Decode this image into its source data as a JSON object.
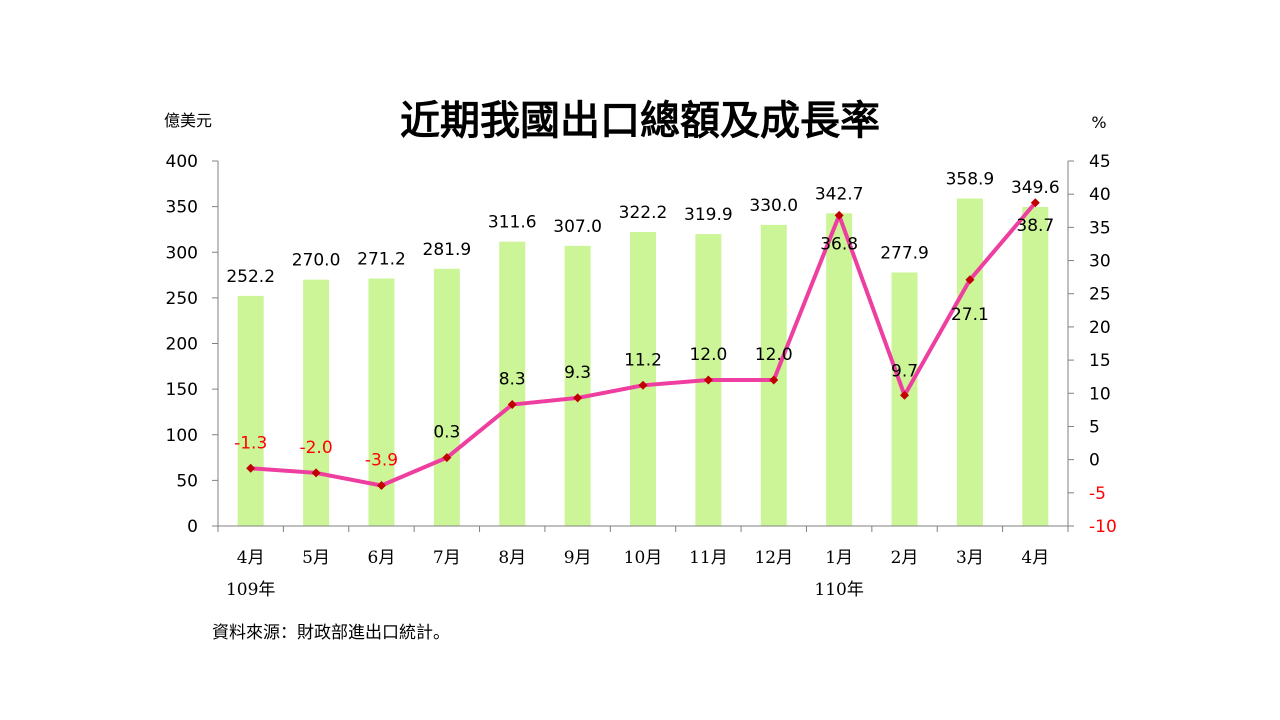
{
  "chart_data": {
    "type": "bar+line",
    "title": "近期我國出口總額及成長率",
    "y_left_unit": "億美元",
    "y_right_unit": "%",
    "categories": [
      "4月",
      "5月",
      "6月",
      "7月",
      "8月",
      "9月",
      "10月",
      "11月",
      "12月",
      "1月",
      "2月",
      "3月",
      "4月"
    ],
    "year_labels": [
      {
        "text": "109年",
        "index": 0
      },
      {
        "text": "110年",
        "index": 9
      }
    ],
    "series": [
      {
        "type": "bar",
        "axis": "left",
        "color": "#ccf598",
        "values": [
          252.2,
          270.0,
          271.2,
          281.9,
          311.6,
          307.0,
          322.2,
          319.9,
          330.0,
          342.7,
          277.9,
          358.9,
          349.6
        ],
        "labels": [
          "252.2",
          "270.0",
          "271.2",
          "281.9",
          "311.6",
          "307.0",
          "322.2",
          "319.9",
          "330.0",
          "342.7",
          "277.9",
          "358.9",
          "349.6"
        ]
      },
      {
        "type": "line",
        "axis": "right",
        "color": "#ee3fa0",
        "marker_color": "#c00000",
        "values": [
          -1.3,
          -2.0,
          -3.9,
          0.3,
          8.3,
          9.3,
          11.2,
          12.0,
          12.0,
          36.8,
          9.7,
          27.1,
          38.7
        ],
        "labels": [
          "-1.3",
          "-2.0",
          "-3.9",
          "0.3",
          "8.3",
          "9.3",
          "11.2",
          "12.0",
          "12.0",
          "36.8",
          "9.7",
          "27.1",
          "38.7"
        ]
      }
    ],
    "y_left": {
      "min": 0,
      "max": 400,
      "ticks": [
        "0",
        "50",
        "100",
        "150",
        "200",
        "250",
        "300",
        "350",
        "400"
      ]
    },
    "y_right": {
      "min": -10,
      "max": 45,
      "ticks": [
        "-10",
        "-5",
        "0",
        "5",
        "10",
        "15",
        "20",
        "25",
        "30",
        "35",
        "40",
        "45"
      ]
    },
    "negative_label_color": "#ff0000",
    "grid": false,
    "legend": "none"
  },
  "source": "資料來源：財政部進出口統計。"
}
